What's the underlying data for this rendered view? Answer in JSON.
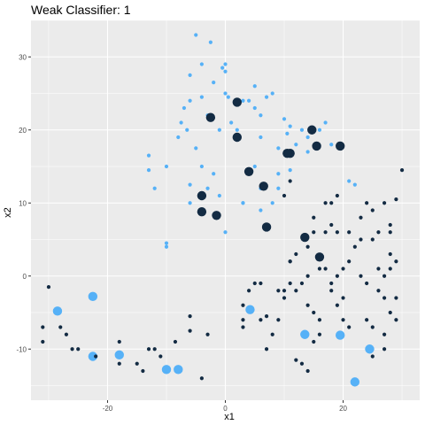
{
  "chart_data": {
    "type": "scatter",
    "title": "Weak Classifier:  1",
    "xlabel": "x1",
    "ylabel": "x2",
    "xlim": [
      -33,
      33
    ],
    "ylim": [
      -17,
      35
    ],
    "x_ticks": [
      -20,
      0,
      20
    ],
    "y_ticks": [
      -10,
      0,
      10,
      20,
      30
    ],
    "grid": true,
    "legend": "none",
    "colors": {
      "class_a": "#132b43",
      "class_b": "#56b1f7",
      "panel": "#ebebeb",
      "grid_major": "#ffffff"
    },
    "series": [
      {
        "color": "#56b1f7",
        "size": "small",
        "points": [
          [
            -5,
            33
          ],
          [
            -2.5,
            32
          ],
          [
            -4,
            29
          ],
          [
            -6,
            27.5
          ],
          [
            -0.5,
            28.5
          ],
          [
            0,
            28
          ],
          [
            0,
            29
          ],
          [
            -2,
            26.5
          ],
          [
            0,
            25
          ],
          [
            0.5,
            24.5
          ],
          [
            5,
            26
          ],
          [
            7,
            24.5
          ],
          [
            8,
            25
          ],
          [
            -6,
            24
          ],
          [
            -4,
            24.5
          ],
          [
            -7,
            23
          ],
          [
            3,
            24
          ],
          [
            4,
            24
          ],
          [
            5,
            23
          ],
          [
            6,
            22
          ],
          [
            -7.5,
            21
          ],
          [
            -6.5,
            20
          ],
          [
            -3,
            22
          ],
          [
            -1,
            20
          ],
          [
            1,
            21
          ],
          [
            10,
            21.5
          ],
          [
            11,
            20.5
          ],
          [
            13,
            20
          ],
          [
            17,
            21
          ],
          [
            16,
            20
          ],
          [
            2,
            20
          ],
          [
            6,
            19
          ],
          [
            10.5,
            19.5
          ],
          [
            14,
            19
          ],
          [
            -8,
            19
          ],
          [
            -5,
            17.5
          ],
          [
            -13,
            16.5
          ],
          [
            9,
            17.5
          ],
          [
            12,
            18
          ],
          [
            14,
            17
          ],
          [
            18,
            18
          ],
          [
            -10,
            15
          ],
          [
            -13,
            14.5
          ],
          [
            -4,
            15
          ],
          [
            5,
            15
          ],
          [
            11,
            14.5
          ],
          [
            -2,
            14
          ],
          [
            9,
            14
          ],
          [
            -12,
            12
          ],
          [
            -6,
            12.5
          ],
          [
            -3,
            12
          ],
          [
            6,
            12
          ],
          [
            9,
            12
          ],
          [
            -6,
            10
          ],
          [
            -1,
            11
          ],
          [
            3,
            10
          ],
          [
            8,
            10
          ],
          [
            -10,
            4.5
          ],
          [
            -10,
            4
          ],
          [
            0,
            6
          ],
          [
            3,
            10
          ],
          [
            6,
            9
          ],
          [
            21,
            13
          ],
          [
            22,
            12.5
          ]
        ]
      },
      {
        "color": "#56b1f7",
        "size": "large",
        "points": [
          [
            -28.5,
            -4.8
          ],
          [
            -22.5,
            -2.8
          ],
          [
            -22.5,
            -11
          ],
          [
            -18,
            -10.8
          ],
          [
            -10,
            -12.8
          ],
          [
            -8,
            -12.8
          ],
          [
            4.2,
            -4.6
          ],
          [
            13.5,
            -8
          ],
          [
            19.5,
            -8.1
          ],
          [
            24.5,
            -10
          ],
          [
            22,
            -14.5
          ]
        ]
      },
      {
        "color": "#132b43",
        "size": "small",
        "points": [
          [
            -30,
            -1.5
          ],
          [
            -31,
            -7
          ],
          [
            -31,
            -9
          ],
          [
            -28,
            -7
          ],
          [
            -27,
            -8
          ],
          [
            -26,
            -10
          ],
          [
            -25,
            -10
          ],
          [
            -22,
            -11
          ],
          [
            -18,
            -9
          ],
          [
            -18,
            -12
          ],
          [
            -15,
            -12
          ],
          [
            -14,
            -13
          ],
          [
            -11,
            -11
          ],
          [
            -8.5,
            -9
          ],
          [
            -6,
            -5.5
          ],
          [
            -6,
            -7.5
          ],
          [
            -3,
            -8
          ],
          [
            -4,
            -14
          ],
          [
            3,
            -4
          ],
          [
            3,
            -6
          ],
          [
            3,
            -7
          ],
          [
            6,
            -6
          ],
          [
            7,
            -5.5
          ],
          [
            8,
            -8
          ],
          [
            9,
            -6
          ],
          [
            10,
            -3
          ],
          [
            12,
            -2
          ],
          [
            14,
            -4
          ],
          [
            15,
            -5
          ],
          [
            16,
            -6
          ],
          [
            18,
            -2
          ],
          [
            19,
            -4
          ],
          [
            20,
            -3
          ],
          [
            20,
            -6
          ],
          [
            21,
            -7
          ],
          [
            24,
            -6
          ],
          [
            25,
            -7
          ],
          [
            27,
            -8
          ],
          [
            26,
            -2
          ],
          [
            27,
            -3
          ],
          [
            28,
            -5
          ],
          [
            29,
            -6
          ],
          [
            25,
            -11
          ],
          [
            27,
            -10
          ],
          [
            4,
            -2
          ],
          [
            5,
            -1
          ],
          [
            6,
            -1
          ],
          [
            9,
            -2
          ],
          [
            10,
            -2
          ],
          [
            11,
            -1
          ],
          [
            13,
            -1
          ],
          [
            14,
            0
          ],
          [
            16,
            1
          ],
          [
            17,
            1
          ],
          [
            18,
            -1
          ],
          [
            19,
            0
          ],
          [
            20,
            1
          ],
          [
            21,
            2
          ],
          [
            23,
            0
          ],
          [
            24,
            -1
          ],
          [
            26,
            1
          ],
          [
            27,
            0
          ],
          [
            28,
            1
          ],
          [
            29,
            2
          ],
          [
            22,
            4
          ],
          [
            23,
            5
          ],
          [
            25,
            5
          ],
          [
            26,
            6
          ],
          [
            28,
            3
          ],
          [
            11,
            2
          ],
          [
            11,
            2
          ],
          [
            12,
            3
          ],
          [
            14,
            4
          ],
          [
            15,
            6
          ],
          [
            17,
            6
          ],
          [
            18,
            7
          ],
          [
            19,
            6
          ],
          [
            21,
            6
          ],
          [
            23,
            8
          ],
          [
            25,
            9
          ],
          [
            24,
            10
          ],
          [
            27,
            10
          ],
          [
            29,
            10.5
          ],
          [
            30,
            14.5
          ],
          [
            15,
            8
          ],
          [
            17,
            10
          ],
          [
            18,
            10
          ],
          [
            19,
            11
          ],
          [
            10,
            11
          ],
          [
            11,
            13
          ],
          [
            13,
            -12
          ],
          [
            14,
            -13
          ],
          [
            12,
            -11.5
          ],
          [
            7,
            -10
          ],
          [
            15,
            -9
          ],
          [
            16,
            -8
          ],
          [
            29,
            -3
          ],
          [
            -13,
            -10
          ],
          [
            -12,
            -10
          ],
          [
            28,
            6
          ],
          [
            28,
            7
          ]
        ]
      },
      {
        "color": "#132b43",
        "size": "large",
        "points": [
          [
            -2.5,
            21.7
          ],
          [
            2,
            23.8
          ],
          [
            2,
            19
          ],
          [
            -4,
            11
          ],
          [
            -4,
            8.8
          ],
          [
            -1.5,
            8.3
          ],
          [
            4,
            14.3
          ],
          [
            6.5,
            12.3
          ],
          [
            7,
            6.7
          ],
          [
            11,
            16.8
          ],
          [
            10.5,
            16.8
          ],
          [
            14.7,
            20
          ],
          [
            15.5,
            17.8
          ],
          [
            19.5,
            17.8
          ],
          [
            13.5,
            5.3
          ],
          [
            16,
            2.6
          ]
        ]
      }
    ]
  }
}
